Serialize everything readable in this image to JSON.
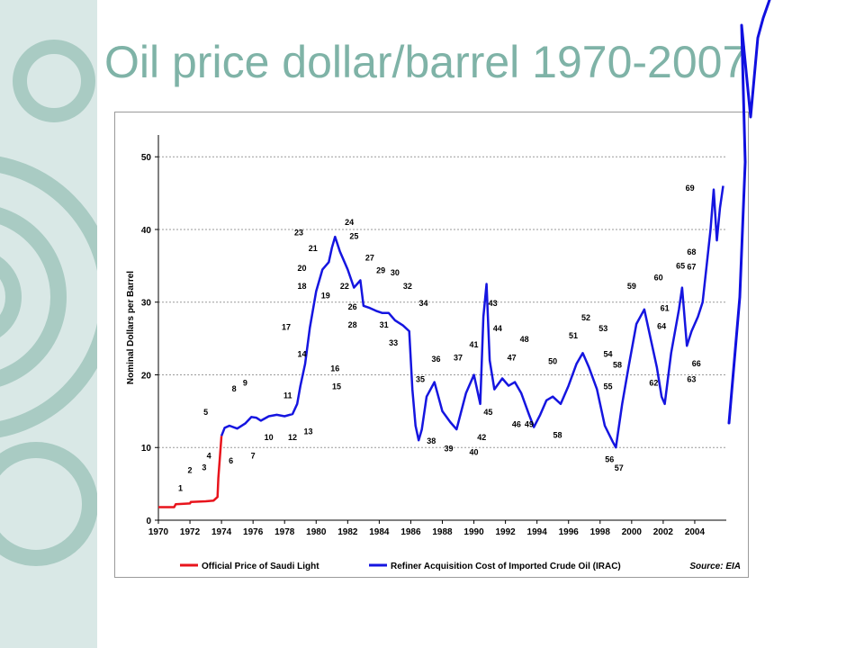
{
  "slide": {
    "title": "Oil price dollar/barrel 1970-2007",
    "colors": {
      "title": "#7fb3a7",
      "band": "#d9e8e6",
      "band_pattern": "#a9cbc3",
      "hand_drawn": "#1010e0"
    }
  },
  "chart_data": {
    "type": "line",
    "xlabel": "",
    "ylabel": "Nominal Dollars per Barrel",
    "xlim": [
      1970,
      2006
    ],
    "ylim": [
      0,
      53
    ],
    "grid": true,
    "legend_position": "bottom",
    "x_ticks": [
      "1970",
      "1972",
      "1974",
      "1976",
      "1978",
      "1980",
      "1982",
      "1984",
      "1986",
      "1988",
      "1990",
      "1992",
      "1994",
      "1996",
      "1998",
      "2000",
      "2002",
      "2004"
    ],
    "y_ticks": [
      "0",
      "10",
      "20",
      "30",
      "40",
      "50"
    ],
    "source": "Source: EIA",
    "series": [
      {
        "name": "Official Price of Saudi Light",
        "color": "#e8141c",
        "x": [
          1970,
          1971,
          1971.1,
          1972,
          1972.05,
          1973,
          1973.5,
          1973.75,
          1973.8,
          1974.0
        ],
        "y": [
          1.8,
          1.8,
          2.2,
          2.3,
          2.5,
          2.6,
          2.7,
          3.2,
          5.8,
          11.6
        ]
      },
      {
        "name": "Refiner Acquisition Cost of Imported Crude Oil (IRAC)",
        "color": "#1515e0",
        "x": [
          1974.0,
          1974.2,
          1974.5,
          1975.0,
          1975.5,
          1975.9,
          1976.2,
          1976.5,
          1977.0,
          1977.5,
          1978.0,
          1978.5,
          1978.8,
          1979.0,
          1979.3,
          1979.6,
          1980.0,
          1980.4,
          1980.8,
          1981.0,
          1981.2,
          1981.5,
          1982.0,
          1982.4,
          1982.8,
          1983.0,
          1983.4,
          1983.8,
          1984.2,
          1984.6,
          1985.0,
          1985.5,
          1985.9,
          1986.1,
          1986.3,
          1986.5,
          1986.7,
          1987.0,
          1987.5,
          1988.0,
          1988.5,
          1988.9,
          1989.5,
          1990.0,
          1990.4,
          1990.6,
          1990.8,
          1991.0,
          1991.3,
          1991.8,
          1992.2,
          1992.6,
          1993.0,
          1993.5,
          1993.8,
          1994.2,
          1994.6,
          1995.0,
          1995.5,
          1996.0,
          1996.5,
          1996.9,
          1997.3,
          1997.8,
          1998.3,
          1998.8,
          1999.0,
          1999.4,
          1999.8,
          2000.3,
          2000.8,
          2001.2,
          2001.6,
          2001.9,
          2002.1,
          2002.5,
          2003.0,
          2003.2,
          2003.5,
          2003.8,
          2004.2,
          2004.5,
          2004.8,
          2005.0,
          2005.2,
          2005.4,
          2005.6,
          2005.8
        ],
        "y": [
          11.6,
          12.7,
          13.0,
          12.6,
          13.3,
          14.2,
          14.1,
          13.7,
          14.3,
          14.5,
          14.3,
          14.6,
          16.0,
          18.5,
          21.5,
          26.5,
          31.5,
          34.5,
          35.5,
          37.5,
          39.0,
          37.0,
          34.5,
          32.0,
          33.0,
          29.5,
          29.2,
          28.8,
          28.5,
          28.5,
          27.5,
          26.8,
          26.0,
          18.0,
          13.0,
          11.0,
          12.5,
          17.0,
          19.0,
          15.0,
          13.5,
          12.5,
          17.5,
          20.0,
          16.0,
          28.0,
          32.5,
          22.0,
          18.0,
          19.5,
          18.5,
          19.0,
          17.5,
          14.5,
          12.8,
          14.5,
          16.5,
          17.0,
          16.0,
          18.5,
          21.5,
          23.0,
          21.0,
          18.0,
          13.0,
          10.8,
          10.0,
          16.0,
          21.0,
          27.0,
          29.0,
          25.0,
          21.0,
          17.0,
          16.0,
          23.0,
          29.0,
          32.0,
          24.0,
          26.0,
          28.0,
          30.0,
          36.0,
          40.0,
          45.5,
          38.5,
          43.0,
          46.0
        ]
      }
    ],
    "annotations": [
      {
        "label": "1",
        "x": 1971.4,
        "y": 4.0
      },
      {
        "label": "2",
        "x": 1972.0,
        "y": 6.5
      },
      {
        "label": "3",
        "x": 1972.9,
        "y": 6.9
      },
      {
        "label": "4",
        "x": 1973.2,
        "y": 8.5
      },
      {
        "label": "5",
        "x": 1973.0,
        "y": 14.5
      },
      {
        "label": "6",
        "x": 1974.6,
        "y": 7.8
      },
      {
        "label": "7",
        "x": 1976.0,
        "y": 8.5
      },
      {
        "label": "8",
        "x": 1974.8,
        "y": 17.7
      },
      {
        "label": "9",
        "x": 1975.5,
        "y": 18.5
      },
      {
        "label": "10",
        "x": 1977.0,
        "y": 11.0
      },
      {
        "label": "11",
        "x": 1978.2,
        "y": 16.8
      },
      {
        "label": "12",
        "x": 1978.5,
        "y": 11.0
      },
      {
        "label": "13",
        "x": 1979.5,
        "y": 11.8
      },
      {
        "label": "14",
        "x": 1979.1,
        "y": 22.5
      },
      {
        "label": "15",
        "x": 1981.3,
        "y": 18.0
      },
      {
        "label": "16",
        "x": 1981.2,
        "y": 20.5
      },
      {
        "label": "17",
        "x": 1978.1,
        "y": 26.2
      },
      {
        "label": "18",
        "x": 1979.1,
        "y": 31.8
      },
      {
        "label": "19",
        "x": 1980.6,
        "y": 30.5
      },
      {
        "label": "20",
        "x": 1979.1,
        "y": 34.3
      },
      {
        "label": "21",
        "x": 1979.8,
        "y": 37.0
      },
      {
        "label": "22",
        "x": 1981.8,
        "y": 31.8
      },
      {
        "label": "23",
        "x": 1978.9,
        "y": 39.2
      },
      {
        "label": "24",
        "x": 1982.1,
        "y": 40.6
      },
      {
        "label": "25",
        "x": 1982.4,
        "y": 38.7
      },
      {
        "label": "26",
        "x": 1982.3,
        "y": 29.0
      },
      {
        "label": "27",
        "x": 1983.4,
        "y": 35.7
      },
      {
        "label": "28",
        "x": 1982.3,
        "y": 26.5
      },
      {
        "label": "29",
        "x": 1984.1,
        "y": 34.0
      },
      {
        "label": "30",
        "x": 1985.0,
        "y": 33.7
      },
      {
        "label": "31",
        "x": 1984.3,
        "y": 26.5
      },
      {
        "label": "32",
        "x": 1985.8,
        "y": 31.8
      },
      {
        "label": "33",
        "x": 1984.9,
        "y": 24.0
      },
      {
        "label": "34",
        "x": 1986.8,
        "y": 29.5
      },
      {
        "label": "35",
        "x": 1986.6,
        "y": 19.0
      },
      {
        "label": "36",
        "x": 1987.6,
        "y": 21.8
      },
      {
        "label": "37",
        "x": 1989.0,
        "y": 22.0
      },
      {
        "label": "38",
        "x": 1987.3,
        "y": 10.5
      },
      {
        "label": "39",
        "x": 1988.4,
        "y": 9.5
      },
      {
        "label": "40",
        "x": 1990.0,
        "y": 9.0
      },
      {
        "label": "41",
        "x": 1990.0,
        "y": 23.8
      },
      {
        "label": "42",
        "x": 1990.5,
        "y": 11.0
      },
      {
        "label": "43",
        "x": 1991.2,
        "y": 29.5
      },
      {
        "label": "44",
        "x": 1991.5,
        "y": 26.0
      },
      {
        "label": "45",
        "x": 1990.9,
        "y": 14.5
      },
      {
        "label": "46",
        "x": 1992.7,
        "y": 12.8
      },
      {
        "label": "47",
        "x": 1992.4,
        "y": 22.0
      },
      {
        "label": "48",
        "x": 1993.2,
        "y": 24.5
      },
      {
        "label": "49",
        "x": 1993.5,
        "y": 12.8
      },
      {
        "label": "50",
        "x": 1995.0,
        "y": 21.5
      },
      {
        "label": "51",
        "x": 1996.3,
        "y": 25.0
      },
      {
        "label": "52",
        "x": 1997.1,
        "y": 27.5
      },
      {
        "label": "53",
        "x": 1998.2,
        "y": 26.0
      },
      {
        "label": "54",
        "x": 1998.5,
        "y": 22.5
      },
      {
        "label": "55",
        "x": 1998.5,
        "y": 18.0
      },
      {
        "label": "56",
        "x": 1998.6,
        "y": 8.0
      },
      {
        "label": "57",
        "x": 1999.2,
        "y": 6.8
      },
      {
        "label": "58",
        "x": 1995.3,
        "y": 11.3
      },
      {
        "label": "58",
        "x": 1999.1,
        "y": 21.0
      },
      {
        "label": "59",
        "x": 2000.0,
        "y": 31.8
      },
      {
        "label": "60",
        "x": 2001.7,
        "y": 33.0
      },
      {
        "label": "61",
        "x": 2002.1,
        "y": 28.8
      },
      {
        "label": "62",
        "x": 2001.4,
        "y": 18.5
      },
      {
        "label": "63",
        "x": 2003.8,
        "y": 19.0
      },
      {
        "label": "64",
        "x": 2001.9,
        "y": 26.3
      },
      {
        "label": "65",
        "x": 2003.1,
        "y": 34.6
      },
      {
        "label": "66",
        "x": 2004.1,
        "y": 21.2
      },
      {
        "label": "67",
        "x": 2003.8,
        "y": 34.5
      },
      {
        "label": "68",
        "x": 2003.8,
        "y": 36.5
      },
      {
        "label": "69",
        "x": 2003.7,
        "y": 45.3
      }
    ]
  }
}
